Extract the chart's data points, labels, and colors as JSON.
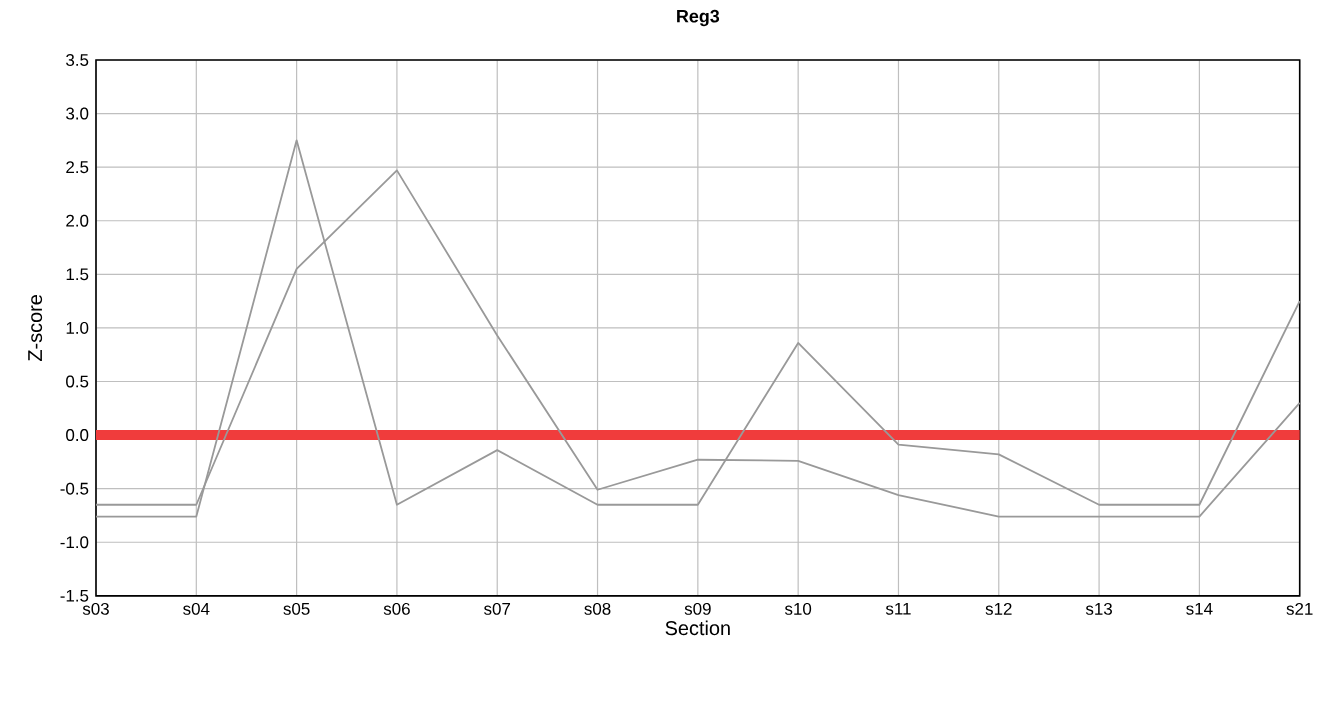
{
  "chart_data": {
    "type": "line",
    "title": "Reg3",
    "xlabel": "Section",
    "ylabel": "Z-score",
    "categories": [
      "s03",
      "s04",
      "s05",
      "s06",
      "s07",
      "s08",
      "s09",
      "s10",
      "s11",
      "s12",
      "s13",
      "s14",
      "s21"
    ],
    "series": [
      {
        "color": "#999999",
        "values": [
          -0.76,
          -0.76,
          2.75,
          -0.65,
          -0.14,
          -0.65,
          -0.65,
          0.86,
          -0.09,
          -0.18,
          -0.65,
          -0.65,
          1.25
        ]
      },
      {
        "color": "#999999",
        "values": [
          -0.65,
          -0.65,
          1.55,
          2.47,
          0.93,
          -0.51,
          -0.23,
          -0.24,
          -0.56,
          -0.76,
          -0.76,
          -0.76,
          0.3
        ]
      }
    ],
    "ylim": [
      -1.5,
      3.5
    ],
    "yticks": [
      -1.5,
      {
        "value": -1,
        "label": "-1.0"
      },
      -0.5,
      {
        "value": 0,
        "label": "0.0"
      },
      0.5,
      {
        "value": 1,
        "label": "1.0"
      },
      1.5,
      {
        "value": 2,
        "label": "2.0"
      },
      2.5,
      {
        "value": 3,
        "label": "3.0"
      },
      3.5
    ],
    "ref_lines": [
      {
        "axis": "y",
        "value": 0,
        "color": "#f03c3c"
      }
    ],
    "grid": true,
    "marker": "none",
    "line_style": "solid"
  }
}
